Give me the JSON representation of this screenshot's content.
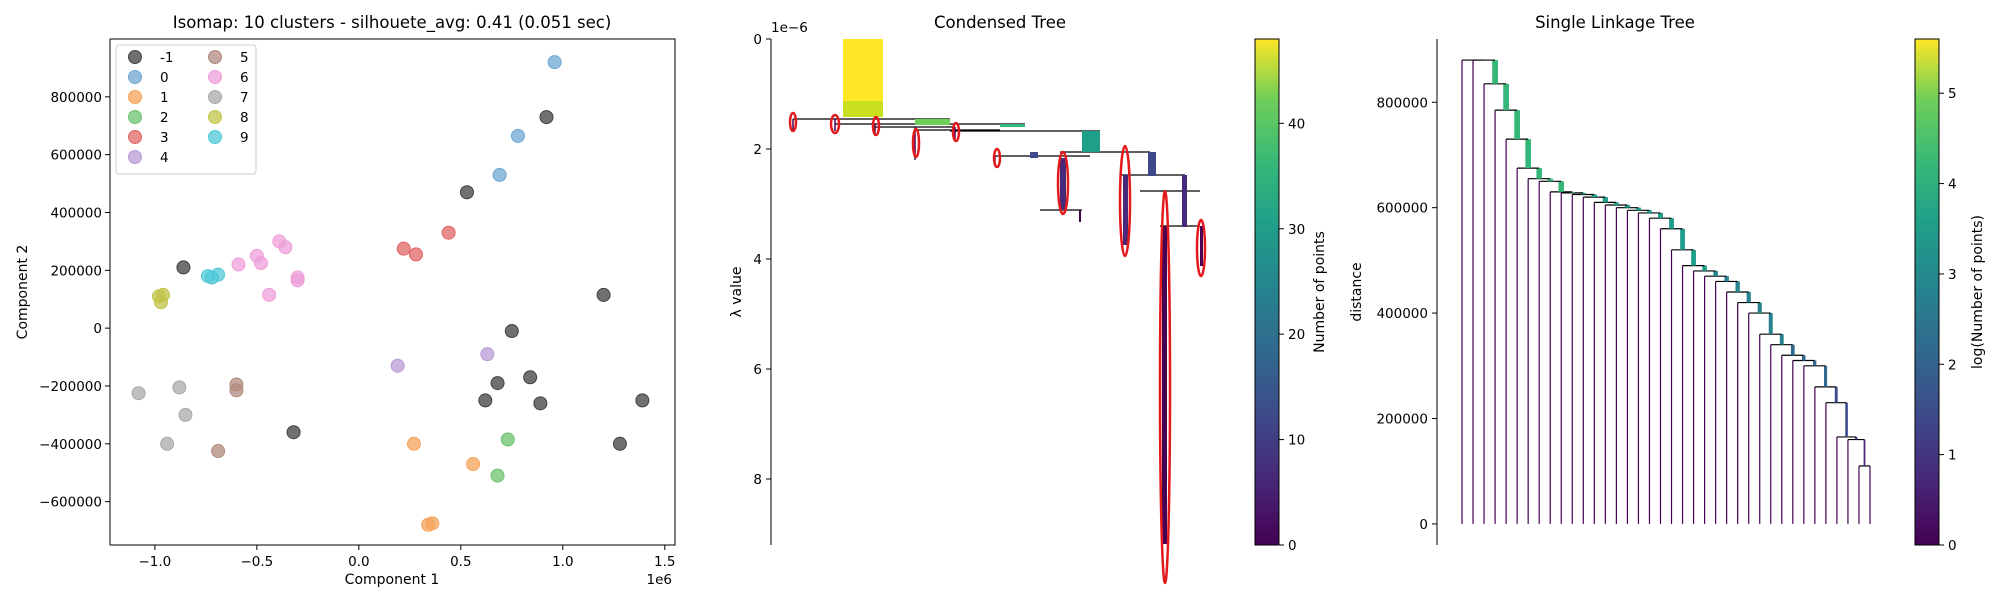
{
  "chart_data": [
    {
      "type": "scatter",
      "title": "Isomap: 10 clusters - silhouete_avg: 0.41 (0.051 sec)",
      "xlabel": "Component 1",
      "ylabel": "Component 2",
      "x_offset_label": "1e6",
      "xlim": [
        -1220000,
        1550000
      ],
      "ylim": [
        -750000,
        1000000
      ],
      "xticks": [
        -1.0,
        -0.5,
        0.0,
        0.5,
        1.0,
        1.5
      ],
      "xtick_labels": [
        "−1.0",
        "−0.5",
        "0.0",
        "0.5",
        "1.0",
        "1.5"
      ],
      "yticks": [
        -600000,
        -400000,
        -200000,
        0,
        200000,
        400000,
        600000,
        800000
      ],
      "ytick_labels": [
        "−600000",
        "−400000",
        "−200000",
        "0",
        "200000",
        "400000",
        "600000",
        "800000"
      ],
      "legend_position": "upper-left",
      "series": [
        {
          "name": "-1",
          "color": "#404040",
          "points": [
            [
              -860000,
              210000
            ],
            [
              530000,
              470000
            ],
            [
              920000,
              730000
            ],
            [
              1200000,
              115000
            ],
            [
              750000,
              -10000
            ],
            [
              680000,
              -190000
            ],
            [
              840000,
              -170000
            ],
            [
              620000,
              -250000
            ],
            [
              890000,
              -260000
            ],
            [
              1390000,
              -250000
            ],
            [
              1280000,
              -400000
            ],
            [
              -320000,
              -360000
            ]
          ]
        },
        {
          "name": "0",
          "color": "#6fa7d1",
          "points": [
            [
              960000,
              920000
            ],
            [
              780000,
              665000
            ],
            [
              690000,
              530000
            ]
          ]
        },
        {
          "name": "1",
          "color": "#f5a35a",
          "points": [
            [
              270000,
              -400000
            ],
            [
              560000,
              -470000
            ],
            [
              360000,
              -675000
            ],
            [
              340000,
              -680000
            ]
          ]
        },
        {
          "name": "2",
          "color": "#6cc26c",
          "points": [
            [
              730000,
              -385000
            ],
            [
              680000,
              -510000
            ]
          ]
        },
        {
          "name": "3",
          "color": "#e06666",
          "points": [
            [
              220000,
              275000
            ],
            [
              280000,
              255000
            ],
            [
              440000,
              330000
            ]
          ]
        },
        {
          "name": "4",
          "color": "#b99bd6",
          "points": [
            [
              190000,
              -130000
            ],
            [
              630000,
              -90000
            ]
          ]
        },
        {
          "name": "5",
          "color": "#b08a7e",
          "points": [
            [
              -600000,
              -195000
            ],
            [
              -600000,
              -215000
            ],
            [
              -690000,
              -425000
            ]
          ]
        },
        {
          "name": "6",
          "color": "#ee9fd8",
          "points": [
            [
              -590000,
              220000
            ],
            [
              -500000,
              250000
            ],
            [
              -480000,
              225000
            ],
            [
              -390000,
              300000
            ],
            [
              -360000,
              280000
            ],
            [
              -300000,
              175000
            ],
            [
              -300000,
              165000
            ],
            [
              -440000,
              115000
            ]
          ]
        },
        {
          "name": "7",
          "color": "#a9a9a9",
          "points": [
            [
              -1080000,
              -225000
            ],
            [
              -880000,
              -205000
            ],
            [
              -850000,
              -300000
            ],
            [
              -940000,
              -400000
            ]
          ]
        },
        {
          "name": "8",
          "color": "#c2c44a",
          "points": [
            [
              -980000,
              110000
            ],
            [
              -960000,
              115000
            ],
            [
              -970000,
              90000
            ]
          ]
        },
        {
          "name": "9",
          "color": "#4fc8d8",
          "points": [
            [
              -740000,
              180000
            ],
            [
              -720000,
              175000
            ],
            [
              -690000,
              185000
            ]
          ]
        }
      ]
    },
    {
      "type": "tree",
      "title": "Condensed Tree",
      "ylabel": "λ value",
      "y_offset_label": "1e−6",
      "ylim": [
        0,
        9.2
      ],
      "yticks": [
        0,
        2,
        4,
        6,
        8
      ],
      "ytick_labels": [
        "0",
        "2",
        "4",
        "6",
        "8"
      ],
      "colorbar": {
        "label": "Number of points",
        "colormap": "viridis",
        "range": [
          0,
          48
        ],
        "ticks": [
          0,
          10,
          20,
          30,
          40
        ],
        "tick_labels": [
          "0",
          "10",
          "20",
          "30",
          "40"
        ]
      }
    },
    {
      "type": "dendrogram",
      "title": "Single Linkage Tree",
      "ylabel": "distance",
      "ylim": [
        -40000,
        920000
      ],
      "yticks": [
        0,
        200000,
        400000,
        600000,
        800000
      ],
      "ytick_labels": [
        "0",
        "200000",
        "400000",
        "600000",
        "800000"
      ],
      "colorbar": {
        "label": "log(Number of points)",
        "colormap": "viridis",
        "range": [
          0,
          5.6
        ],
        "ticks": [
          0,
          1,
          2,
          3,
          4,
          5
        ],
        "tick_labels": [
          "0",
          "1",
          "2",
          "3",
          "4",
          "5"
        ]
      }
    }
  ]
}
